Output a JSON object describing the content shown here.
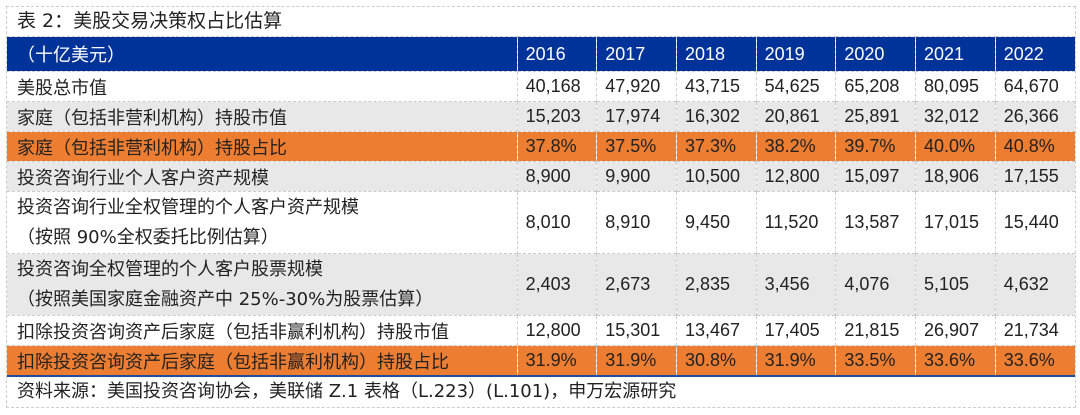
{
  "title": "表 2：美股交易决策权占比估算",
  "header": {
    "unit": "（十亿美元）",
    "years": [
      "2016",
      "2017",
      "2018",
      "2019",
      "2020",
      "2021",
      "2022"
    ]
  },
  "rows": [
    {
      "label": "美股总市值",
      "values": [
        "40,168",
        "47,920",
        "43,715",
        "54,625",
        "65,208",
        "80,095",
        "64,670"
      ],
      "style": "white"
    },
    {
      "label": "家庭（包括非营利机构）持股市值",
      "values": [
        "15,203",
        "17,974",
        "16,302",
        "20,861",
        "25,891",
        "32,012",
        "26,366"
      ],
      "style": "gray"
    },
    {
      "label": "家庭（包括非营利机构）持股占比",
      "values": [
        "37.8%",
        "37.5%",
        "37.3%",
        "38.2%",
        "39.7%",
        "40.0%",
        "40.8%"
      ],
      "style": "orange"
    },
    {
      "label": "投资咨询行业个人客户资产规模",
      "values": [
        "8,900",
        "9,900",
        "10,500",
        "12,800",
        "15,097",
        "18,906",
        "17,155"
      ],
      "style": "gray"
    },
    {
      "label": "投资咨询行业全权管理的个人客户资产规模",
      "sublabel": "（按照 90%全权委托比例估算）",
      "values": [
        "8,010",
        "8,910",
        "9,450",
        "11,520",
        "13,587",
        "17,015",
        "15,440"
      ],
      "style": "white"
    },
    {
      "label": "投资咨询全权管理的个人客户股票规模",
      "sublabel": "（按照美国家庭金融资产中 25%-30%为股票估算）",
      "values": [
        "2,403",
        "2,673",
        "2,835",
        "3,456",
        "4,076",
        "5,105",
        "4,632"
      ],
      "style": "gray"
    },
    {
      "label": "扣除投资咨询资产后家庭（包括非赢利机构）持股市值",
      "values": [
        "12,800",
        "15,301",
        "13,467",
        "17,405",
        "21,815",
        "26,907",
        "21,734"
      ],
      "style": "white"
    },
    {
      "label": "扣除投资咨询资产后家庭（包括非赢利机构）持股占比",
      "values": [
        "31.9%",
        "31.9%",
        "30.8%",
        "31.9%",
        "33.5%",
        "33.6%",
        "33.6%"
      ],
      "style": "orange"
    }
  ],
  "source": "资料来源：美国投资咨询协会，美联储 Z.1 表格（L.223）(L.101)，申万宏源研究",
  "colors": {
    "header_bg": "#003399",
    "highlight": "#ed7d31",
    "stripe": "#e8e8e8"
  }
}
